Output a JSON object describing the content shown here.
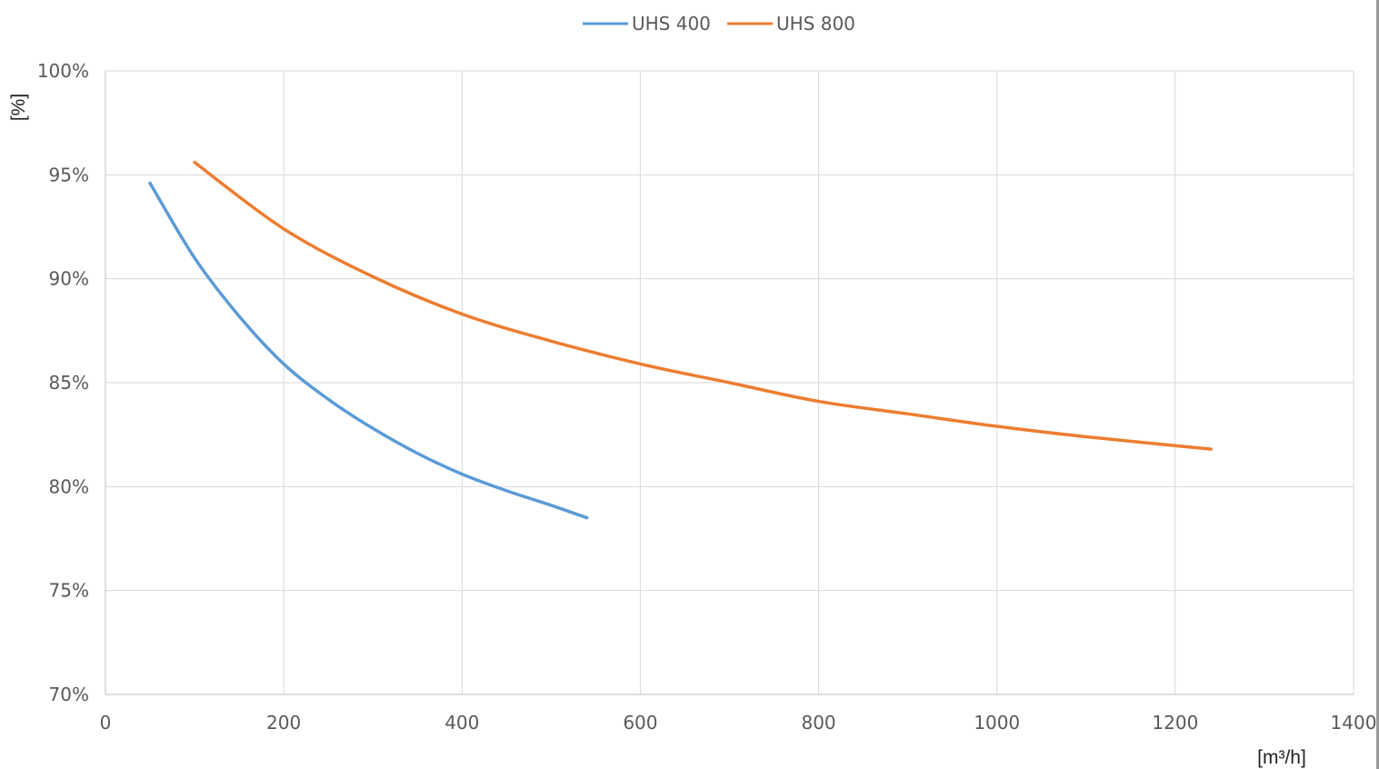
{
  "chart_data": {
    "type": "line",
    "ylabel": "[%]",
    "xlabel": "[m³/h]",
    "xlim": [
      0,
      1400
    ],
    "ylim": [
      70,
      100
    ],
    "x_ticks": [
      "0",
      "200",
      "400",
      "600",
      "800",
      "1000",
      "1200",
      "1400"
    ],
    "y_ticks": [
      "70%",
      "75%",
      "80%",
      "85%",
      "90%",
      "95%",
      "100%"
    ],
    "grid": true,
    "legend_position": "top-center",
    "series": [
      {
        "name": "UHS 400",
        "color": "#5b9bd5",
        "points": [
          [
            50,
            94.6
          ],
          [
            100,
            91.0
          ],
          [
            150,
            88.2
          ],
          [
            200,
            85.9
          ],
          [
            250,
            84.2
          ],
          [
            300,
            82.8
          ],
          [
            350,
            81.6
          ],
          [
            400,
            80.6
          ],
          [
            450,
            79.8
          ],
          [
            500,
            79.1
          ],
          [
            540,
            78.5
          ]
        ]
      },
      {
        "name": "UHS 800",
        "color": "#ed7d31",
        "points": [
          [
            100,
            95.6
          ],
          [
            200,
            92.4
          ],
          [
            300,
            90.1
          ],
          [
            400,
            88.3
          ],
          [
            500,
            87.0
          ],
          [
            600,
            85.9
          ],
          [
            700,
            85.0
          ],
          [
            800,
            84.1
          ],
          [
            900,
            83.5
          ],
          [
            1000,
            82.9
          ],
          [
            1100,
            82.4
          ],
          [
            1240,
            81.8
          ]
        ]
      }
    ]
  }
}
